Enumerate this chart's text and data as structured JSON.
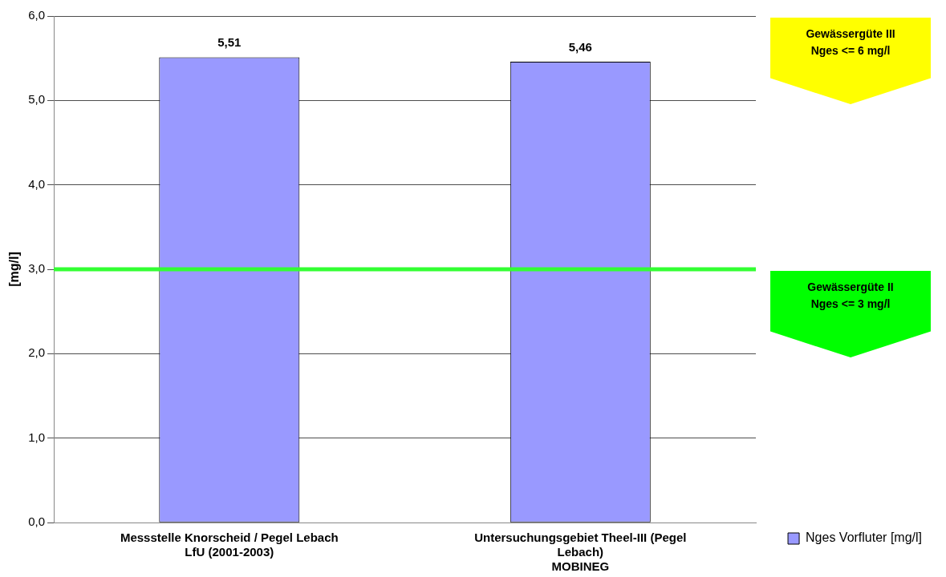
{
  "chart_data": {
    "type": "bar",
    "ylabel": "[mg/l]",
    "categories": [
      "Messstelle Knorscheid / Pegel Lebach\nLfU (2001-2003)",
      "Untersuchungsgebiet Theel-III (Pegel Lebach)\nMOBINEG"
    ],
    "series": [
      {
        "name": "Nges Vorfluter [mg/l]",
        "color": "#9999ff",
        "values": [
          5.51,
          5.46
        ],
        "value_labels": [
          "5,51",
          "5,46"
        ]
      }
    ],
    "ylim": [
      0,
      6
    ],
    "yticks": [
      {
        "value": 0,
        "label": "0,0"
      },
      {
        "value": 1,
        "label": "1,0"
      },
      {
        "value": 2,
        "label": "2,0"
      },
      {
        "value": 3,
        "label": "3,0"
      },
      {
        "value": 4,
        "label": "4,0"
      },
      {
        "value": 5,
        "label": "5,0"
      },
      {
        "value": 6,
        "label": "6,0"
      }
    ],
    "grid": "y",
    "legend": "bottom right",
    "ref_lines": [
      {
        "axis": "y",
        "value": 3,
        "color": "#33ff33"
      }
    ],
    "annotations": [
      "Gewässergüte III\nNges <= 6 mg/l",
      "Gewässergüte II\nNges <= 3 mg/l"
    ]
  }
}
